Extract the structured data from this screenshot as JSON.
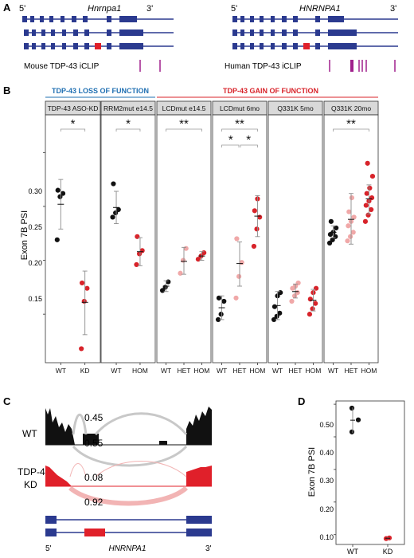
{
  "panels": {
    "a": {
      "letter": "A",
      "mouse_gene": "Hnrnpa1",
      "human_gene": "HNRNPA1",
      "five_prime": "5'",
      "three_prime": "3'",
      "mouse_track_label": "Mouse TDP-43 iCLIP",
      "human_track_label": "Human TDP-43 iCLIP"
    },
    "b": {
      "letter": "B",
      "loss_header": "TDP-43 LOSS OF FUNCTION",
      "gain_header": "TDP-43 GAIN OF FUNCTION",
      "y_label": "Exon 7B PSI",
      "y_ticks": [
        "0.15",
        "0.20",
        "0.25",
        "0.30"
      ]
    },
    "c": {
      "letter": "C",
      "wt_label": "WT",
      "kd_label_1": "TDP-43",
      "kd_label_2": "KD",
      "wt_upper": "0.45",
      "wt_lower": "0.55",
      "kd_upper": "0.08",
      "kd_lower": "0.92",
      "five_prime": "5'",
      "three_prime": "3'",
      "gene": "HNRNPA1"
    },
    "d": {
      "letter": "D",
      "y_label": "Exon 7B PSI",
      "y_ticks": [
        "0.10",
        "0.20",
        "0.30",
        "0.40",
        "0.50"
      ],
      "x_labels": [
        "WT",
        "KD"
      ]
    }
  },
  "colors": {
    "gene_model": "#2b3a8f",
    "exon_7b": "#e0202a",
    "iclip": "#a0208c",
    "wt_points": "#111111",
    "het_points": "#f0a8a8",
    "hom_points": "#d8232a",
    "loss_header": "#1f6fb2",
    "gain_header": "#d8232a",
    "wt_coverage": "#111111",
    "kd_coverage": "#e0202a",
    "wt_arc": "#c8c8c8",
    "kd_arc": "#f2b4b4"
  },
  "chart_data": [
    {
      "type": "scatter",
      "panel": "B",
      "ylabel": "Exon 7B PSI",
      "ylim": [
        0.105,
        0.335
      ],
      "facets": [
        {
          "title": "TDP-43 ASO-KD",
          "significance": "*",
          "groups": [
            {
              "label": "WT",
              "color_key": "wt_points",
              "mean": 0.252,
              "sd_low": 0.229,
              "sd_high": 0.275,
              "values": [
                0.219,
                0.259,
                0.262,
                0.265
              ]
            },
            {
              "label": "KD",
              "color_key": "hom_points",
              "mean": 0.161,
              "sd_low": 0.131,
              "sd_high": 0.19,
              "values": [
                0.118,
                0.162,
                0.174,
                0.179
              ]
            }
          ]
        },
        {
          "title": "RRM2mut e14.5",
          "significance": "*",
          "groups": [
            {
              "label": "WT",
              "color_key": "wt_points",
              "mean": 0.249,
              "sd_low": 0.234,
              "sd_high": 0.264,
              "values": [
                0.24,
                0.244,
                0.247,
                0.271
              ]
            },
            {
              "label": "HOM",
              "color_key": "hom_points",
              "mean": 0.208,
              "sd_low": 0.195,
              "sd_high": 0.221,
              "values": [
                0.196,
                0.206,
                0.209,
                0.222
              ]
            }
          ]
        },
        {
          "title": "LCDmut e14.5",
          "significance": "**",
          "groups": [
            {
              "label": "WT",
              "color_key": "wt_points",
              "mean": 0.176,
              "sd_low": 0.171,
              "sd_high": 0.181,
              "values": [
                0.172,
                0.175,
                0.18
              ]
            },
            {
              "label": "HET",
              "color_key": "het_points",
              "mean": 0.199,
              "sd_low": 0.187,
              "sd_high": 0.212,
              "values": [
                0.188,
                0.2,
                0.211
              ]
            },
            {
              "label": "HOM",
              "color_key": "hom_points",
              "mean": 0.204,
              "sd_low": 0.2,
              "sd_high": 0.208,
              "values": [
                0.201,
                0.204,
                0.207
              ]
            }
          ]
        },
        {
          "title": "LCDmut 6mo",
          "significance": "**",
          "sub_significance": [
            "*",
            "*"
          ],
          "groups": [
            {
              "label": "WT",
              "color_key": "wt_points",
              "mean": 0.156,
              "sd_low": 0.145,
              "sd_high": 0.167,
              "values": [
                0.145,
                0.15,
                0.162,
                0.165
              ]
            },
            {
              "label": "HET",
              "color_key": "het_points",
              "mean": 0.197,
              "sd_low": 0.176,
              "sd_high": 0.217,
              "values": [
                0.165,
                0.185,
                0.198,
                0.22
              ]
            },
            {
              "label": "HOM",
              "color_key": "hom_points",
              "mean": 0.241,
              "sd_low": 0.222,
              "sd_high": 0.26,
              "values": [
                0.213,
                0.229,
                0.24,
                0.246,
                0.257
              ]
            }
          ]
        },
        {
          "title": "Q331K 5mo",
          "significance": "",
          "groups": [
            {
              "label": "WT",
              "color_key": "wt_points",
              "mean": 0.158,
              "sd_low": 0.145,
              "sd_high": 0.171,
              "values": [
                0.145,
                0.148,
                0.151,
                0.157,
                0.167,
                0.17
              ]
            },
            {
              "label": "HET",
              "color_key": "het_points",
              "mean": 0.171,
              "sd_low": 0.165,
              "sd_high": 0.178,
              "values": [
                0.162,
                0.167,
                0.17,
                0.174,
                0.176,
                0.179
              ]
            },
            {
              "label": "HOM",
              "color_key": "hom_points",
              "mean": 0.163,
              "sd_low": 0.153,
              "sd_high": 0.173,
              "values": [
                0.15,
                0.155,
                0.16,
                0.164,
                0.17,
                0.174
              ]
            }
          ]
        },
        {
          "title": "Q331K 20mo",
          "significance": "**",
          "groups": [
            {
              "label": "WT",
              "color_key": "wt_points",
              "mean": 0.226,
              "sd_low": 0.221,
              "sd_high": 0.232,
              "values": [
                0.216,
                0.219,
                0.222,
                0.224,
                0.226,
                0.23,
                0.236
              ]
            },
            {
              "label": "HET",
              "color_key": "het_points",
              "mean": 0.238,
              "sd_low": 0.215,
              "sd_high": 0.262,
              "values": [
                0.218,
                0.222,
                0.226,
                0.232,
                0.236,
                0.24,
                0.245,
                0.258
              ]
            },
            {
              "label": "HOM",
              "color_key": "hom_points",
              "mean": 0.257,
              "sd_low": 0.243,
              "sd_high": 0.27,
              "values": [
                0.236,
                0.242,
                0.247,
                0.251,
                0.255,
                0.258,
                0.262,
                0.267,
                0.278,
                0.29
              ]
            }
          ]
        }
      ]
    },
    {
      "type": "scatter",
      "panel": "D",
      "ylabel": "Exon 7B PSI",
      "ylim": [
        0.07,
        0.51
      ],
      "groups": [
        {
          "label": "WT",
          "color_key": "wt_points",
          "mean": 0.451,
          "sd_low": 0.412,
          "sd_high": 0.49,
          "values": [
            0.415,
            0.452,
            0.488
          ]
        },
        {
          "label": "KD",
          "color_key": "hom_points",
          "mean": 0.089,
          "sd_low": 0.086,
          "sd_high": 0.092,
          "values": [
            0.088,
            0.09
          ]
        }
      ]
    }
  ]
}
